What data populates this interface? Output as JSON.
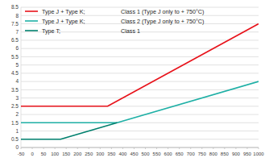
{
  "chart_data": {
    "type": "line",
    "series": [
      {
        "name": "Type J + Type K;",
        "class_label": "Class 1 (Type J only to + 750°C)",
        "color": "#e8131b",
        "x": [
          -50,
          333,
          1000
        ],
        "values": [
          2.5,
          2.5,
          7.5
        ]
      },
      {
        "name": "Type J + Type K;",
        "class_label": "Class 2 (Type J only to + 750°C)",
        "color": "#1fb0a6",
        "x": [
          -50,
          375,
          1000
        ],
        "values": [
          1.5,
          1.5,
          4
        ]
      },
      {
        "name": "Type T;",
        "class_label": "Class 1",
        "color": "#00806e",
        "x": [
          -50,
          125,
          375
        ],
        "values": [
          0.5,
          0.5,
          1.5
        ]
      }
    ],
    "xlim": [
      -50,
      1000
    ],
    "xticks": [
      -50,
      0,
      50,
      100,
      150,
      200,
      250,
      300,
      350,
      400,
      450,
      500,
      550,
      600,
      650,
      700,
      750,
      800,
      850,
      900,
      950,
      1000
    ],
    "ylim": [
      0,
      8.5
    ],
    "yticks": [
      0,
      0.5,
      1,
      1.5,
      2,
      2.5,
      3,
      3.5,
      4,
      4.5,
      5,
      5.5,
      6,
      6.5,
      7,
      7.5,
      8,
      8.5
    ],
    "grid": true,
    "legend": "top-left"
  }
}
